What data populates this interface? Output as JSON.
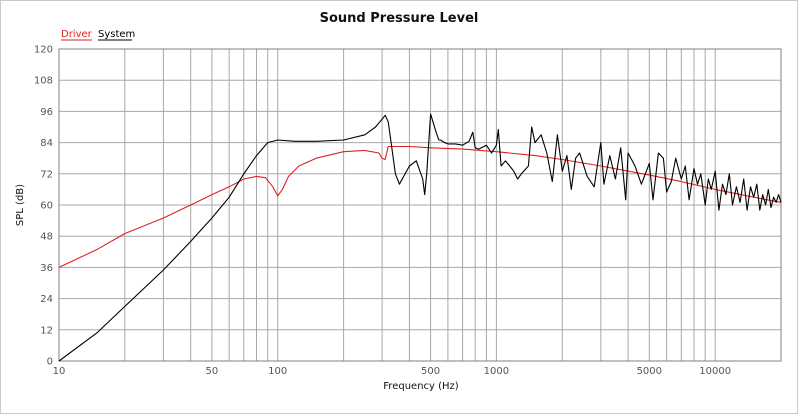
{
  "chart_data": {
    "type": "line",
    "title": "Sound Pressure Level",
    "xlabel": "Frequency (Hz)",
    "ylabel": "SPL (dB)",
    "x_scale": "log",
    "xlim": [
      10,
      20000
    ],
    "ylim": [
      0,
      120
    ],
    "y_ticks": [
      0,
      12,
      24,
      36,
      48,
      60,
      72,
      84,
      96,
      108,
      120
    ],
    "x_tick_labels": [
      10,
      50,
      100,
      500,
      1000,
      5000,
      10000
    ],
    "grid": true,
    "legend_position": "top-left",
    "series": [
      {
        "name": "Driver",
        "color": "#e02020",
        "x": [
          10,
          15,
          20,
          30,
          40,
          50,
          60,
          70,
          80,
          88,
          95,
          100,
          105,
          112,
          125,
          150,
          200,
          250,
          290,
          300,
          310,
          320,
          350,
          400,
          500,
          700,
          1000,
          1500,
          2000,
          3000,
          5000,
          7000,
          10000,
          15000,
          20000
        ],
        "values": [
          36,
          43,
          49,
          55,
          60,
          64,
          67,
          70,
          71,
          70.5,
          67,
          63.5,
          66,
          71,
          75,
          78,
          80.5,
          81,
          80,
          78,
          77.5,
          82.5,
          82.5,
          82.5,
          82,
          81.5,
          80.5,
          79,
          77.5,
          75,
          71.5,
          69,
          66,
          63,
          61
        ]
      },
      {
        "name": "System",
        "color": "#000000",
        "x": [
          10,
          15,
          20,
          30,
          40,
          50,
          60,
          70,
          80,
          90,
          100,
          120,
          150,
          200,
          250,
          280,
          300,
          310,
          320,
          330,
          345,
          360,
          400,
          430,
          460,
          470,
          480,
          500,
          530,
          545,
          555,
          580,
          600,
          650,
          700,
          750,
          780,
          800,
          830,
          900,
          950,
          1000,
          1020,
          1050,
          1100,
          1200,
          1250,
          1300,
          1400,
          1450,
          1500,
          1600,
          1700,
          1800,
          1900,
          2000,
          2100,
          2200,
          2300,
          2400,
          2600,
          2800,
          3000,
          3100,
          3300,
          3500,
          3700,
          3900,
          4000,
          4300,
          4600,
          5000,
          5200,
          5500,
          5800,
          6000,
          6300,
          6600,
          7000,
          7300,
          7600,
          8000,
          8300,
          8600,
          9000,
          9300,
          9600,
          10000,
          10400,
          10800,
          11200,
          11600,
          12000,
          12500,
          13000,
          13500,
          14000,
          14500,
          15000,
          15500,
          16000,
          16500,
          17000,
          17500,
          18000,
          18500,
          19000,
          19500,
          20000
        ],
        "values": [
          0,
          11,
          21,
          35,
          46,
          55,
          63,
          72,
          79,
          84,
          85,
          84.5,
          84.5,
          85,
          87,
          90,
          93,
          94.5,
          92,
          84,
          72,
          68,
          75,
          77,
          70,
          64,
          72,
          95,
          88,
          85,
          85,
          84,
          83.5,
          83.5,
          83,
          84.5,
          88,
          82,
          81.5,
          83,
          80,
          83,
          89,
          75,
          77,
          73,
          70,
          72,
          75,
          90,
          84,
          87,
          80,
          69,
          87,
          73,
          79,
          66,
          78,
          80,
          71,
          67,
          84,
          68,
          79,
          70,
          82,
          62,
          80,
          75,
          68,
          76,
          62,
          80,
          78,
          65,
          69,
          78,
          70,
          75,
          62,
          74,
          68,
          72,
          60,
          70,
          66,
          73,
          58,
          68,
          64,
          72,
          60,
          67,
          61,
          70,
          58,
          67,
          63,
          68,
          58,
          64,
          60,
          66,
          59,
          63,
          61,
          64,
          61
        ]
      }
    ]
  }
}
